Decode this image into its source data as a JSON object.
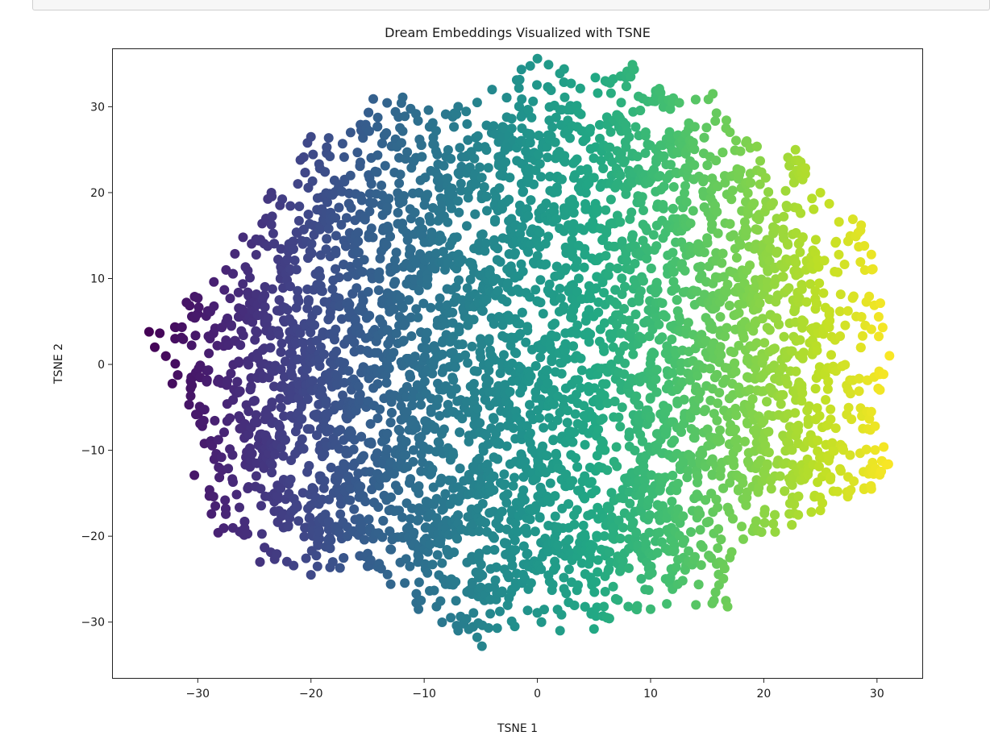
{
  "chart_data": {
    "type": "scatter",
    "title": "Dream Embeddings Visualized with TSNE",
    "xlabel": "TSNE 1",
    "ylabel": "TSNE 2",
    "xlim": [
      -37.5,
      34
    ],
    "ylim": [
      -36.5,
      36.7
    ],
    "xticks": [
      -30,
      -20,
      -10,
      0,
      10,
      20,
      30
    ],
    "yticks": [
      -30,
      -20,
      -10,
      0,
      10,
      20,
      30
    ],
    "grid": false,
    "legend": "none",
    "colormap": "viridis",
    "color_by": "TSNE 1",
    "marker_color_range": [
      "#440154",
      "#fde725"
    ],
    "point_count_shown": "thousands of overlapping points",
    "outline_samples": [
      {
        "x": -34.3,
        "y": 3.8
      },
      {
        "x": -33.8,
        "y": 2.0
      },
      {
        "x": -31.0,
        "y": 7.2
      },
      {
        "x": -30.0,
        "y": 5.9
      },
      {
        "x": -29.6,
        "y": -7.2
      },
      {
        "x": -30.3,
        "y": -12.9
      },
      {
        "x": -28.2,
        "y": -19.6
      },
      {
        "x": -24.5,
        "y": -23.0
      },
      {
        "x": -20.0,
        "y": -24.5
      },
      {
        "x": -15.0,
        "y": -23.5
      },
      {
        "x": -10.5,
        "y": -28.5
      },
      {
        "x": -7.0,
        "y": -31.0
      },
      {
        "x": -4.9,
        "y": -32.8
      },
      {
        "x": -2.0,
        "y": -30.5
      },
      {
        "x": 2.0,
        "y": -31.0
      },
      {
        "x": 5.0,
        "y": -30.8
      },
      {
        "x": 10.0,
        "y": -28.5
      },
      {
        "x": 14.0,
        "y": -28.0
      },
      {
        "x": 16.8,
        "y": -28.2
      },
      {
        "x": 17.0,
        "y": -22.5
      },
      {
        "x": 21.0,
        "y": -19.5
      },
      {
        "x": 25.0,
        "y": -17.0
      },
      {
        "x": 29.5,
        "y": -14.5
      },
      {
        "x": 31.0,
        "y": -11.6
      },
      {
        "x": 29.5,
        "y": -5.5
      },
      {
        "x": 31.1,
        "y": 1.0
      },
      {
        "x": 30.5,
        "y": 4.3
      },
      {
        "x": 29.5,
        "y": 12.8
      },
      {
        "x": 28.6,
        "y": 16.2
      },
      {
        "x": 25.0,
        "y": 20.0
      },
      {
        "x": 22.8,
        "y": 25.0
      },
      {
        "x": 18.5,
        "y": 26.0
      },
      {
        "x": 15.5,
        "y": 31.5
      },
      {
        "x": 12.0,
        "y": 31.0
      },
      {
        "x": 8.4,
        "y": 34.9
      },
      {
        "x": 6.0,
        "y": 33.0
      },
      {
        "x": 0.0,
        "y": 35.6
      },
      {
        "x": -4.0,
        "y": 32.0
      },
      {
        "x": -7.0,
        "y": 30.0
      },
      {
        "x": -11.9,
        "y": 31.1
      },
      {
        "x": -14.5,
        "y": 30.9
      },
      {
        "x": -16.5,
        "y": 27.0
      },
      {
        "x": -20.0,
        "y": 26.5
      },
      {
        "x": -23.5,
        "y": 20.0
      },
      {
        "x": -26.0,
        "y": 14.8
      },
      {
        "x": -27.5,
        "y": 11.0
      },
      {
        "x": -32.0,
        "y": 3.0
      }
    ]
  }
}
